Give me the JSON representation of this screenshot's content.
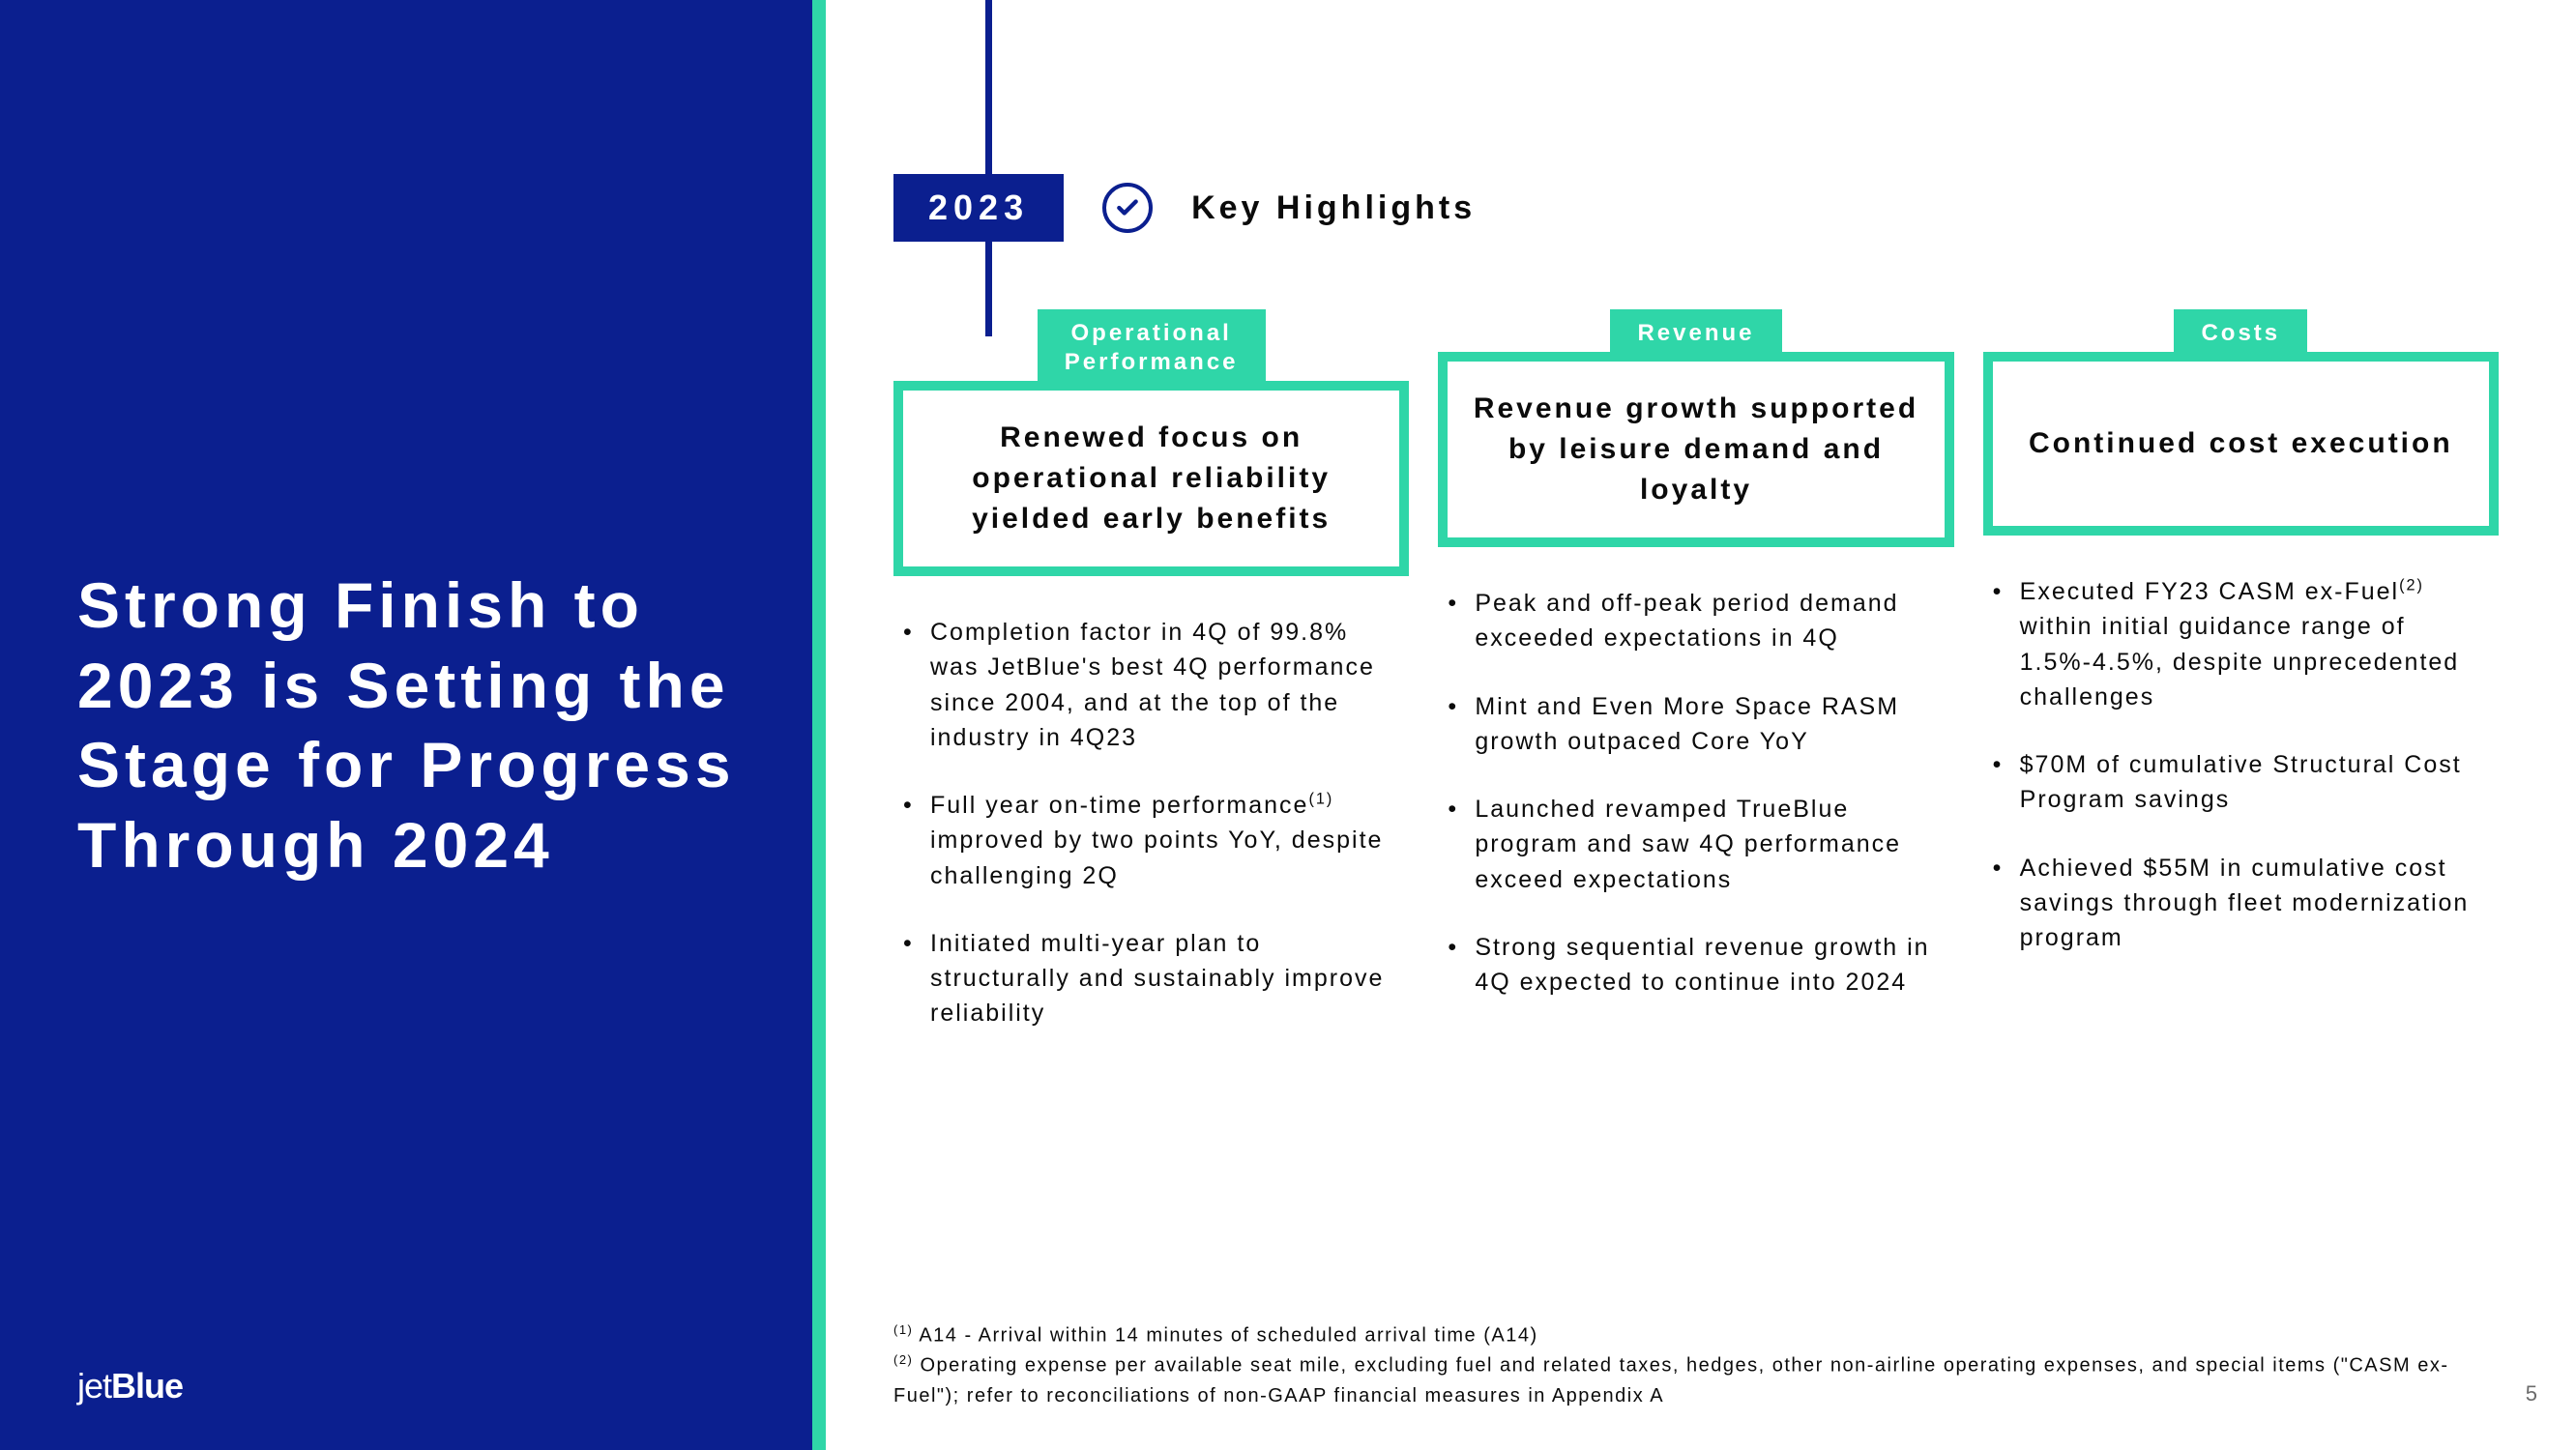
{
  "colors": {
    "brand_blue": "#0b1f8f",
    "accent_teal": "#2fd6a8",
    "text_black": "#0b0b0b",
    "white": "#ffffff",
    "page_num_gray": "#6b6b6b"
  },
  "left": {
    "title": "Strong Finish to 2023 is Setting the Stage for Progress Through 2024",
    "logo_prefix": "jet",
    "logo_suffix": "Blue"
  },
  "header": {
    "year": "2023",
    "title": "Key Highlights"
  },
  "columns": [
    {
      "tab": "Operational\nPerformance",
      "headline": "Renewed focus on operational reliability yielded early benefits",
      "bullets": [
        "Completion factor in 4Q of 99.8% was JetBlue's best 4Q performance since 2004, and at the top of the industry in 4Q23",
        "Full year on-time performance(1) improved by two points YoY, despite challenging 2Q",
        "Initiated multi-year plan to structurally and sustainably improve reliability"
      ]
    },
    {
      "tab": "Revenue",
      "headline": "Revenue growth supported by leisure demand and loyalty",
      "bullets": [
        "Peak and off-peak period demand exceeded expectations in 4Q",
        "Mint and Even More Space RASM growth outpaced Core YoY",
        "Launched revamped TrueBlue program and saw 4Q performance exceed expectations",
        "Strong sequential revenue growth in 4Q expected to continue into 2024"
      ]
    },
    {
      "tab": "Costs",
      "headline": "Continued cost execution",
      "bullets": [
        "Executed FY23 CASM ex-Fuel(2) within initial guidance range of 1.5%-4.5%, despite unprecedented challenges",
        "$70M of cumulative Structural Cost Program savings",
        "Achieved $55M in cumulative cost savings through fleet modernization program"
      ]
    }
  ],
  "footnotes": [
    "(1) A14 - Arrival within 14 minutes of scheduled arrival time (A14)",
    "(2) Operating expense per available seat mile, excluding fuel and related taxes, hedges, other non-airline operating expenses, and special items (\"CASM ex-Fuel\"); refer to reconciliations of non-GAAP financial measures in Appendix A"
  ],
  "page_number": "5"
}
